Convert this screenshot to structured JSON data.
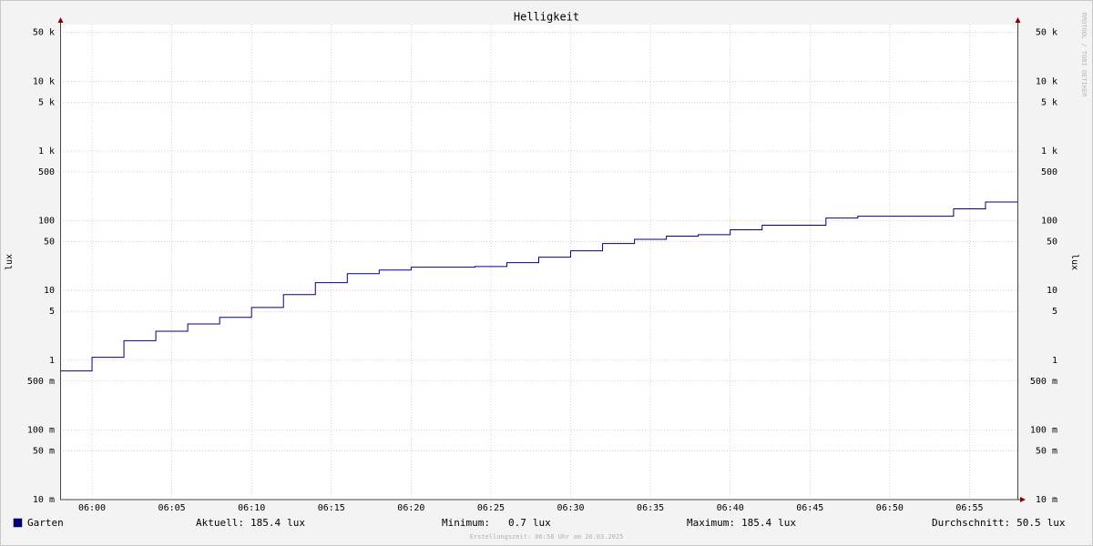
{
  "chart_data": {
    "type": "line",
    "title": "Helligkeit",
    "ylabel": "lux",
    "watermark": "RRDTOOL / TOBI OETIKER",
    "log_y": true,
    "grid": true,
    "step": true,
    "ylim": [
      0.01,
      65000
    ],
    "yticks": [
      {
        "value": 0.01,
        "label": "10 m"
      },
      {
        "value": 0.05,
        "label": "50 m"
      },
      {
        "value": 0.1,
        "label": "100 m"
      },
      {
        "value": 0.5,
        "label": "500 m"
      },
      1,
      5,
      10,
      50,
      100,
      500,
      {
        "value": 1000,
        "label": "1 k"
      },
      {
        "value": 5000,
        "label": "5 k"
      },
      {
        "value": 10000,
        "label": "10 k"
      },
      {
        "value": 50000,
        "label": "50 k"
      }
    ],
    "xlim": [
      "05:58",
      "06:58"
    ],
    "xticks": [
      "06:00",
      "06:05",
      "06:10",
      "06:15",
      "06:20",
      "06:25",
      "06:30",
      "06:35",
      "06:40",
      "06:45",
      "06:50",
      "06:55"
    ],
    "x": [
      "05:58",
      "06:00",
      "06:02",
      "06:04",
      "06:06",
      "06:08",
      "06:10",
      "06:12",
      "06:14",
      "06:16",
      "06:18",
      "06:20",
      "06:24",
      "06:26",
      "06:28",
      "06:30",
      "06:32",
      "06:34",
      "06:36",
      "06:38",
      "06:40",
      "06:42",
      "06:46",
      "06:48",
      "06:54",
      "06:56"
    ],
    "series": [
      {
        "name": "Garten",
        "color": "#000080",
        "values": [
          0.7,
          1.1,
          1.9,
          2.6,
          3.3,
          4.1,
          5.7,
          8.7,
          12.9,
          17.4,
          19.6,
          21.5,
          22,
          25,
          30,
          37,
          47,
          54,
          60,
          63,
          74,
          86,
          109,
          116,
          148,
          185.4
        ]
      }
    ],
    "stats": [
      {
        "label": "Aktuell:",
        "value": 185.4,
        "unit": "lux"
      },
      {
        "label": "Minimum:",
        "value": 0.7,
        "unit": "lux"
      },
      {
        "label": "Maximum:",
        "value": 185.4,
        "unit": "lux"
      },
      {
        "label": "Durchschnitt:",
        "value": 50.5,
        "unit": "lux"
      }
    ],
    "footer": "Erstellungszeit: 06:58 Uhr am 26.03.2025"
  }
}
